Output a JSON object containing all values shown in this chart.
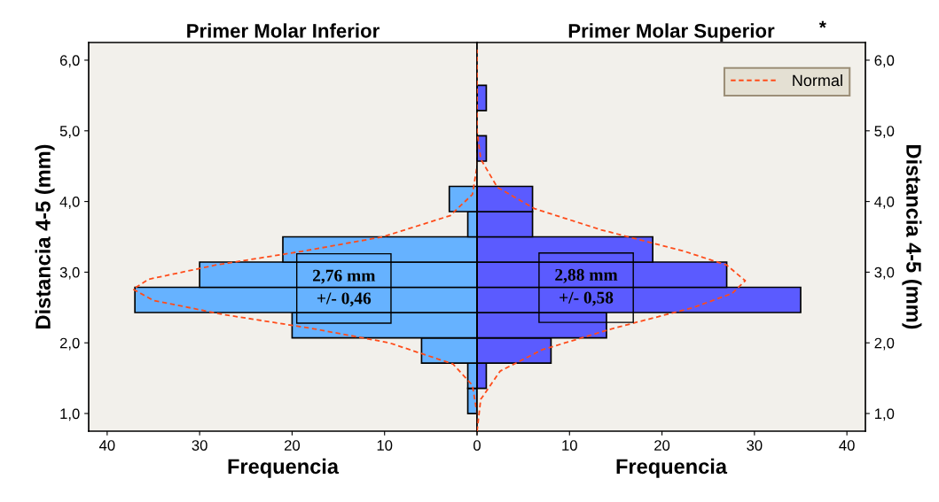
{
  "chart_data": [
    {
      "type": "histogram",
      "orientation": "horizontal",
      "title": "Primer Molar Inferior",
      "xlabel": "Frequencia",
      "ylabel": "Distancia 4-5 (mm)",
      "bins": [
        1.0,
        1.357,
        1.714,
        2.071,
        2.429,
        2.786,
        3.143,
        3.5,
        3.857,
        4.214
      ],
      "values": [
        1,
        1,
        6,
        20,
        37,
        30,
        21,
        1,
        3
      ],
      "color": "#66b2ff",
      "series": [
        {
          "type": "line",
          "color": "#ff4c1a",
          "line_style": "dashed",
          "x": [
            0.75,
            1.0,
            1.4,
            1.7,
            2.0,
            2.2,
            2.4,
            2.6,
            2.76,
            2.9,
            3.1,
            3.3,
            3.5,
            3.8,
            4.1,
            4.5,
            6.15
          ],
          "values": [
            0,
            0,
            0.5,
            2.6,
            9.5,
            17.7,
            27.4,
            35.0,
            37.2,
            35.5,
            28.3,
            18.7,
            10.2,
            2.9,
            0.5,
            0,
            0
          ]
        }
      ],
      "xlim": [
        42,
        0
      ],
      "xticks": [
        40,
        30,
        20,
        10,
        0
      ],
      "ylim": [
        0.75,
        6.25
      ],
      "yticks": [
        {
          "value": 1,
          "label": "1,0"
        },
        {
          "value": 2,
          "label": "2,0"
        },
        {
          "value": 3,
          "label": "3,0"
        },
        {
          "value": 4,
          "label": "4,0"
        },
        {
          "value": 5,
          "label": "5,0"
        },
        {
          "value": 6,
          "label": "6,0"
        }
      ],
      "annotations": [
        {
          "text": "2,76 mm\n+/- 0,46",
          "x": 14.4,
          "y": 2.77
        }
      ],
      "grid": false,
      "legend": false
    },
    {
      "type": "histogram",
      "orientation": "horizontal",
      "title": "Primer Molar Superior",
      "xlabel": "Frequencia",
      "ylabel": "Distancia 4-5 (mm)",
      "bins": [
        1.0,
        1.357,
        1.714,
        2.071,
        2.429,
        2.786,
        3.143,
        3.5,
        3.857,
        4.214,
        4.571,
        4.929,
        5.286,
        5.643
      ],
      "values": [
        0,
        1,
        8,
        14,
        35,
        27,
        19,
        6,
        6,
        0,
        1,
        0,
        1
      ],
      "color": "#5b5bff",
      "series": [
        {
          "type": "line",
          "name": "Normal",
          "color": "#ff4c1a",
          "line_style": "dashed",
          "x": [
            0.75,
            1.2,
            1.6,
            1.9,
            2.2,
            2.5,
            2.7,
            2.88,
            3.1,
            3.3,
            3.6,
            3.9,
            4.2,
            4.6,
            5.0,
            6.15
          ],
          "values": [
            0,
            0.4,
            2.5,
            7.0,
            14.6,
            23.4,
            27.6,
            29.0,
            27.0,
            22.3,
            13.4,
            6.2,
            2.2,
            0.4,
            0,
            0
          ]
        }
      ],
      "xlim": [
        0,
        42
      ],
      "xticks": [
        {
          "value": 0,
          "label": null
        },
        10,
        20,
        30,
        40
      ],
      "ylim": [
        0.75,
        6.25
      ],
      "yticks": [
        {
          "value": 1,
          "label": "1,0"
        },
        {
          "value": 2,
          "label": "2,0"
        },
        {
          "value": 3,
          "label": "3,0"
        },
        {
          "value": 4,
          "label": "4,0"
        },
        {
          "value": 5,
          "label": "5,0"
        },
        {
          "value": 6,
          "label": "6,0"
        }
      ],
      "annotations": [
        {
          "text": "2,88 mm\n+/- 0,58",
          "x": 11.8,
          "y": 2.78
        },
        "*"
      ],
      "grid": false,
      "legend": "top right"
    }
  ]
}
